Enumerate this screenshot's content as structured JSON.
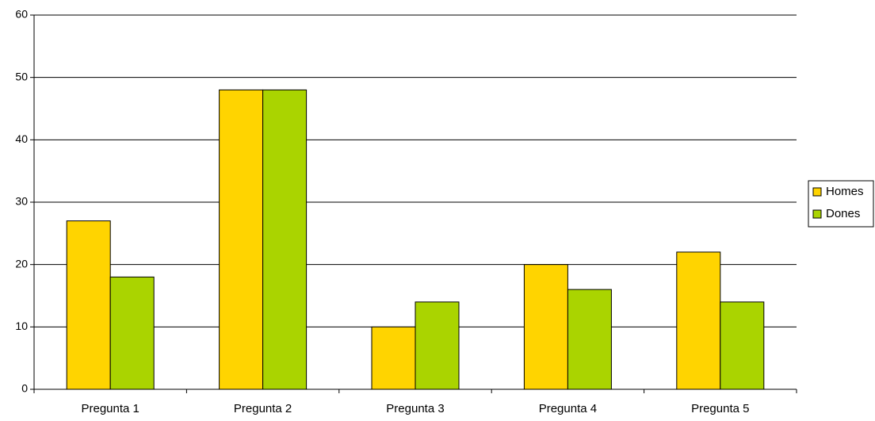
{
  "chart_data": {
    "type": "bar",
    "categories": [
      "Pregunta 1",
      "Pregunta 2",
      "Pregunta 3",
      "Pregunta 4",
      "Pregunta 5"
    ],
    "series": [
      {
        "name": "Homes",
        "values": [
          27,
          48,
          10,
          20,
          22
        ],
        "color": "#FFD400"
      },
      {
        "name": "Dones",
        "values": [
          18,
          48,
          14,
          16,
          14
        ],
        "color": "#AAD400"
      }
    ],
    "title": "",
    "xlabel": "",
    "ylabel": "",
    "ylim": [
      0,
      60
    ],
    "yticks": [
      0,
      10,
      20,
      30,
      40,
      50,
      60
    ],
    "grid": true,
    "legend_position": "right"
  }
}
